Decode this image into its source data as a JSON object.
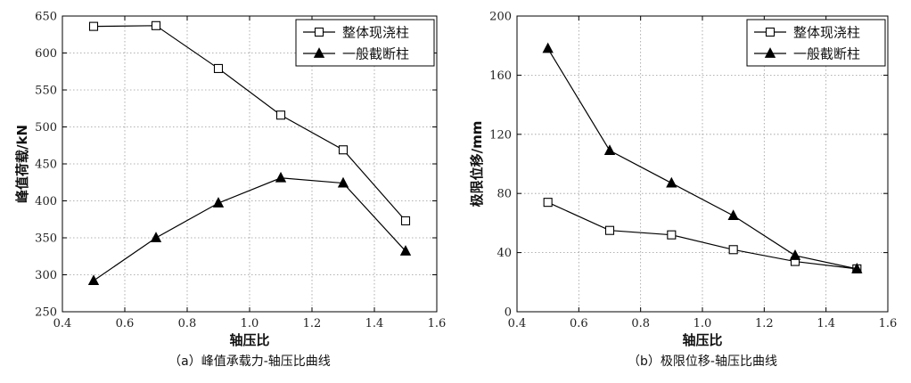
{
  "chart_data": [
    {
      "type": "line",
      "caption": "（a）峰值承载力-轴压比曲线",
      "xlabel": "轴压比",
      "ylabel": "峰值荷载/kN",
      "xlim": [
        0.4,
        1.6
      ],
      "ylim": [
        250,
        650
      ],
      "xticks": [
        0.4,
        0.6,
        0.8,
        1.0,
        1.2,
        1.4,
        1.6
      ],
      "yticks": [
        250,
        300,
        350,
        400,
        450,
        500,
        550,
        600,
        650
      ],
      "xtick_labels": [
        "0.4",
        "0.6",
        "0.8",
        "1.0",
        "1.2",
        "1.4",
        "1.6"
      ],
      "ytick_labels": [
        "250",
        "300",
        "350",
        "400",
        "450",
        "500",
        "550",
        "600",
        "650"
      ],
      "grid": "dotted",
      "legend_position": "top-right",
      "x": [
        0.5,
        0.7,
        0.9,
        1.1,
        1.3,
        1.5
      ],
      "series": [
        {
          "name": "整体现浇柱",
          "marker": "square-open",
          "values": [
            636,
            637,
            579,
            516,
            469,
            373
          ]
        },
        {
          "name": "一般截断柱",
          "marker": "triangle-filled",
          "values": [
            292,
            350,
            397,
            431,
            424,
            332
          ]
        }
      ]
    },
    {
      "type": "line",
      "caption": "（b）极限位移-轴压比曲线",
      "xlabel": "轴压比",
      "ylabel": "极限位移/mm",
      "xlim": [
        0.4,
        1.6
      ],
      "ylim": [
        0,
        200
      ],
      "xticks": [
        0.4,
        0.6,
        0.8,
        1.0,
        1.2,
        1.4,
        1.6
      ],
      "yticks": [
        0,
        40,
        80,
        120,
        160,
        200
      ],
      "xtick_labels": [
        "0.4",
        "0.6",
        "0.8",
        "1.0",
        "1.2",
        "1.4",
        "1.6"
      ],
      "ytick_labels": [
        "0",
        "40",
        "80",
        "120",
        "160",
        "200"
      ],
      "grid": "dotted",
      "legend_position": "top-right",
      "x": [
        0.5,
        0.7,
        0.9,
        1.1,
        1.3,
        1.5
      ],
      "series": [
        {
          "name": "整体现浇柱",
          "marker": "square-open",
          "values": [
            74,
            55,
            52,
            42,
            34,
            29
          ]
        },
        {
          "name": "一般截断柱",
          "marker": "triangle-filled",
          "values": [
            178,
            109,
            87,
            65,
            38,
            29
          ]
        }
      ]
    }
  ]
}
